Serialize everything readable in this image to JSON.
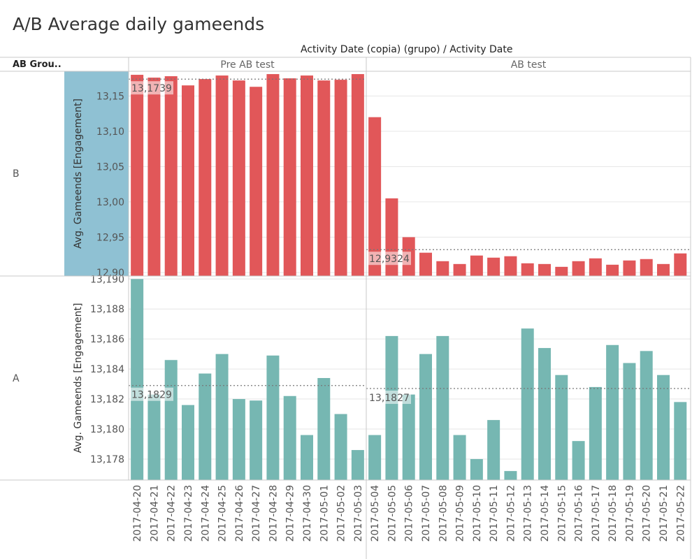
{
  "title": "A/B Average daily gameends",
  "column_header": "Activity Date (copia) (grupo)  /  Activity Date",
  "row_header": "AB Grou..",
  "colors": {
    "group_b": "#e15759",
    "group_a": "#76b7b2",
    "highlight": "#8fc1d3",
    "grid": "#e6e6e6",
    "divider": "#c8c8c8"
  },
  "chart_data": [
    {
      "type": "bar",
      "group": "B",
      "ylabel": "Avg. Gameends [Engagement]",
      "ylim": [
        12.895,
        13.185
      ],
      "yticks": [
        "13,15",
        "13,10",
        "13,05",
        "13,00",
        "12,95",
        "12,90"
      ],
      "ytick_values": [
        13.15,
        13.1,
        13.05,
        13.0,
        12.95,
        12.9
      ],
      "period_headers": [
        "Pre AB test",
        "AB test"
      ],
      "categories": [
        "2017-04-20",
        "2017-04-21",
        "2017-04-22",
        "2017-04-23",
        "2017-04-24",
        "2017-04-25",
        "2017-04-26",
        "2017-04-27",
        "2017-04-28",
        "2017-04-29",
        "2017-04-30",
        "2017-05-01",
        "2017-05-02",
        "2017-05-03",
        "2017-05-04",
        "2017-05-05",
        "2017-05-06",
        "2017-05-07",
        "2017-05-08",
        "2017-05-09",
        "2017-05-10",
        "2017-05-11",
        "2017-05-12",
        "2017-05-13",
        "2017-05-14",
        "2017-05-15",
        "2017-05-16",
        "2017-05-17",
        "2017-05-18",
        "2017-05-19",
        "2017-05-20",
        "2017-05-21",
        "2017-05-22"
      ],
      "values": [
        13.18,
        13.176,
        13.178,
        13.165,
        13.174,
        13.179,
        13.172,
        13.163,
        13.181,
        13.175,
        13.179,
        13.172,
        13.173,
        13.181,
        13.12,
        13.005,
        12.95,
        12.928,
        12.916,
        12.912,
        12.924,
        12.921,
        12.923,
        12.913,
        12.912,
        12.908,
        12.916,
        12.92,
        12.911,
        12.917,
        12.919,
        12.912,
        12.927
      ],
      "averages": [
        {
          "period": "Pre AB test",
          "value": 13.1739,
          "label": "13,1739"
        },
        {
          "period": "AB test",
          "value": 12.9324,
          "label": "12,9324"
        }
      ]
    },
    {
      "type": "bar",
      "group": "A",
      "ylabel": "Avg. Gameends [Engagement]",
      "ylim": [
        13.1766,
        13.1902
      ],
      "yticks": [
        "13,190",
        "13,188",
        "13,186",
        "13,184",
        "13,182",
        "13,180",
        "13,178"
      ],
      "ytick_values": [
        13.19,
        13.188,
        13.186,
        13.184,
        13.182,
        13.18,
        13.178
      ],
      "categories": [
        "2017-04-20",
        "2017-04-21",
        "2017-04-22",
        "2017-04-23",
        "2017-04-24",
        "2017-04-25",
        "2017-04-26",
        "2017-04-27",
        "2017-04-28",
        "2017-04-29",
        "2017-04-30",
        "2017-05-01",
        "2017-05-02",
        "2017-05-03",
        "2017-05-04",
        "2017-05-05",
        "2017-05-06",
        "2017-05-07",
        "2017-05-08",
        "2017-05-09",
        "2017-05-10",
        "2017-05-11",
        "2017-05-12",
        "2017-05-13",
        "2017-05-14",
        "2017-05-15",
        "2017-05-16",
        "2017-05-17",
        "2017-05-18",
        "2017-05-19",
        "2017-05-20",
        "2017-05-21",
        "2017-05-22"
      ],
      "values": [
        13.19,
        13.1823,
        13.1846,
        13.1816,
        13.1837,
        13.185,
        13.182,
        13.1819,
        13.1849,
        13.1822,
        13.1796,
        13.1834,
        13.181,
        13.1786,
        13.1796,
        13.1862,
        13.1823,
        13.185,
        13.1862,
        13.1796,
        13.178,
        13.1806,
        13.1772,
        13.1867,
        13.1854,
        13.1836,
        13.1792,
        13.1828,
        13.1856,
        13.1844,
        13.1852,
        13.1836,
        13.1818
      ],
      "averages": [
        {
          "period": "Pre AB test",
          "value": 13.1829,
          "label": "13,1829"
        },
        {
          "period": "AB test",
          "value": 13.1827,
          "label": "13,1827"
        }
      ]
    }
  ]
}
